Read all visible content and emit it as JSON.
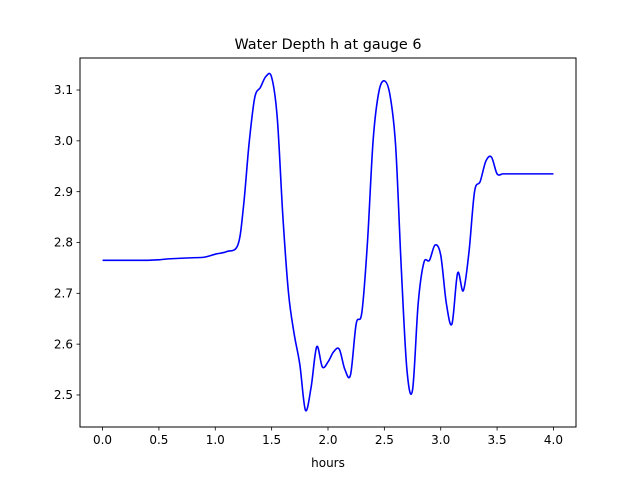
{
  "chart_data": {
    "type": "line",
    "title": "Water Depth h at gauge 6",
    "xlabel": "hours",
    "ylabel": "",
    "xlim": [
      -0.2,
      4.2
    ],
    "ylim": [
      2.437,
      3.163
    ],
    "xticks": [
      0.0,
      0.5,
      1.0,
      1.5,
      2.0,
      2.5,
      3.0,
      3.5,
      4.0
    ],
    "xtick_labels": [
      "0.0",
      "0.5",
      "1.0",
      "1.5",
      "2.0",
      "2.5",
      "3.0",
      "3.5",
      "4.0"
    ],
    "yticks": [
      2.5,
      2.6,
      2.7,
      2.8,
      2.9,
      3.0,
      3.1
    ],
    "ytick_labels": [
      "2.5",
      "2.6",
      "2.7",
      "2.8",
      "2.9",
      "3.0",
      "3.1"
    ],
    "grid": false,
    "series": [
      {
        "color": "#0000ff",
        "x": [
          0.0,
          0.2,
          0.4,
          0.5,
          0.6,
          0.8,
          0.9,
          1.0,
          1.1,
          1.2,
          1.25,
          1.3,
          1.35,
          1.4,
          1.45,
          1.5,
          1.55,
          1.6,
          1.65,
          1.7,
          1.75,
          1.8,
          1.85,
          1.9,
          1.95,
          2.0,
          2.05,
          2.1,
          2.15,
          2.2,
          2.25,
          2.3,
          2.35,
          2.4,
          2.45,
          2.5,
          2.55,
          2.6,
          2.65,
          2.7,
          2.75,
          2.8,
          2.85,
          2.9,
          2.95,
          3.0,
          3.05,
          3.1,
          3.15,
          3.2,
          3.25,
          3.3,
          3.35,
          3.4,
          3.45,
          3.5,
          3.55,
          3.6,
          3.65,
          3.7,
          3.75,
          3.8,
          3.85,
          3.9,
          3.95,
          4.0
        ],
        "y": [
          2.765,
          2.765,
          2.765,
          2.766,
          2.768,
          2.77,
          2.771,
          2.777,
          2.782,
          2.795,
          2.87,
          2.995,
          3.085,
          3.105,
          3.127,
          3.125,
          3.045,
          2.85,
          2.7,
          2.62,
          2.56,
          2.47,
          2.515,
          2.595,
          2.555,
          2.565,
          2.585,
          2.59,
          2.55,
          2.54,
          2.64,
          2.662,
          2.8,
          3.0,
          3.095,
          3.118,
          3.09,
          2.99,
          2.75,
          2.55,
          2.51,
          2.68,
          2.76,
          2.765,
          2.795,
          2.775,
          2.68,
          2.64,
          2.74,
          2.705,
          2.78,
          2.9,
          2.92,
          2.96,
          2.968,
          2.935,
          2.935,
          2.935,
          2.935,
          2.935,
          2.935,
          2.935,
          2.935,
          2.935,
          2.935,
          2.935
        ]
      }
    ]
  }
}
